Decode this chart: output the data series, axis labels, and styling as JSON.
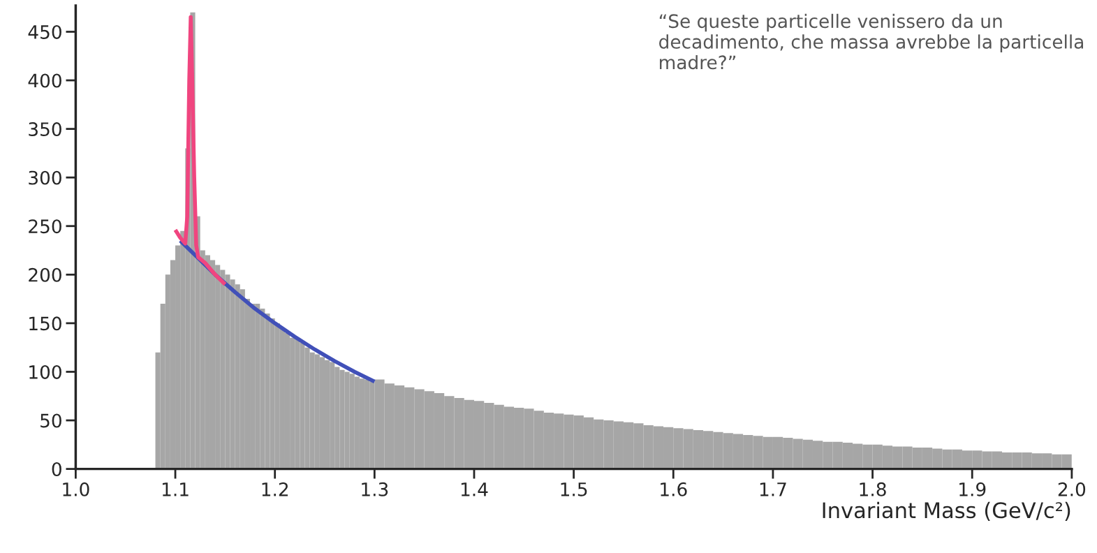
{
  "chart_data": {
    "type": "histogram",
    "bins": [
      1.08,
      1.085,
      1.09,
      1.095,
      1.1,
      1.105,
      1.11,
      1.115,
      1.12,
      1.125,
      1.13,
      1.135,
      1.14,
      1.145,
      1.15,
      1.155,
      1.16,
      1.165,
      1.17,
      1.175,
      1.18,
      1.185,
      1.19,
      1.195,
      1.2,
      1.205,
      1.21,
      1.215,
      1.22,
      1.225,
      1.23,
      1.235,
      1.24,
      1.245,
      1.25,
      1.255,
      1.26,
      1.265,
      1.27,
      1.275,
      1.28,
      1.285,
      1.29,
      1.295,
      1.3,
      1.31,
      1.32,
      1.33,
      1.34,
      1.35,
      1.36,
      1.37,
      1.38,
      1.39,
      1.4,
      1.41,
      1.42,
      1.43,
      1.44,
      1.45,
      1.46,
      1.47,
      1.48,
      1.49,
      1.5,
      1.51,
      1.52,
      1.53,
      1.54,
      1.55,
      1.56,
      1.57,
      1.58,
      1.59,
      1.6,
      1.61,
      1.62,
      1.63,
      1.64,
      1.65,
      1.66,
      1.67,
      1.68,
      1.69,
      1.7,
      1.71,
      1.72,
      1.73,
      1.74,
      1.75,
      1.76,
      1.77,
      1.78,
      1.79,
      1.8,
      1.81,
      1.82,
      1.83,
      1.84,
      1.85,
      1.86,
      1.87,
      1.88,
      1.89,
      1.9,
      1.91,
      1.92,
      1.93,
      1.94,
      1.95,
      1.96,
      1.97,
      1.98,
      1.99,
      2.0
    ],
    "values": [
      120,
      170,
      200,
      215,
      230,
      245,
      330,
      470,
      260,
      225,
      220,
      215,
      210,
      205,
      200,
      195,
      190,
      185,
      175,
      170,
      170,
      165,
      160,
      155,
      150,
      145,
      140,
      135,
      135,
      130,
      125,
      120,
      118,
      115,
      112,
      110,
      105,
      102,
      100,
      98,
      95,
      93,
      92,
      90,
      92,
      88,
      86,
      84,
      82,
      80,
      78,
      75,
      73,
      71,
      70,
      68,
      66,
      64,
      63,
      62,
      60,
      58,
      57,
      56,
      55,
      53,
      51,
      50,
      49,
      48,
      47,
      45,
      44,
      43,
      42,
      41,
      40,
      39,
      38,
      37,
      36,
      35,
      34,
      33,
      33,
      32,
      31,
      30,
      29,
      28,
      28,
      27,
      26,
      25,
      25,
      24,
      23,
      23,
      22,
      22,
      21,
      20,
      20,
      19,
      19,
      18,
      18,
      17,
      17,
      17,
      16,
      16,
      15,
      15
    ],
    "color": "#a6a6a6",
    "series": [
      {
        "type": "line",
        "color": "#4150b8",
        "x": [
          1.105,
          1.12,
          1.14,
          1.16,
          1.18,
          1.2,
          1.22,
          1.24,
          1.26,
          1.28,
          1.3
        ],
        "values": [
          235,
          220,
          200,
          182,
          165,
          150,
          136,
          123,
          111,
          100,
          90
        ]
      },
      {
        "type": "line",
        "color": "#f0457f",
        "x": [
          1.1,
          1.105,
          1.11,
          1.112,
          1.114,
          1.1155,
          1.117,
          1.119,
          1.121,
          1.123,
          1.13,
          1.14,
          1.15
        ],
        "values": [
          246,
          238,
          232,
          260,
          400,
          465,
          400,
          300,
          230,
          218,
          212,
          200,
          190
        ]
      }
    ],
    "xlabel": "Invariant Mass (GeV/c²)",
    "xlim": [
      1.0,
      2.0
    ],
    "xticks": [
      {
        "value": 1,
        "label": "1.0"
      },
      1.1,
      1.2,
      1.3,
      1.4,
      1.5,
      1.6,
      1.7,
      1.8,
      1.9,
      {
        "value": 2,
        "label": "2.0"
      }
    ],
    "ylim": [
      0,
      477
    ],
    "yticks": [
      0,
      50,
      100,
      150,
      200,
      250,
      300,
      350,
      400,
      450
    ],
    "annotations": [
      "“Se queste particelle venissero da un decadimento, che massa avrebbe la particella madre?”"
    ]
  }
}
